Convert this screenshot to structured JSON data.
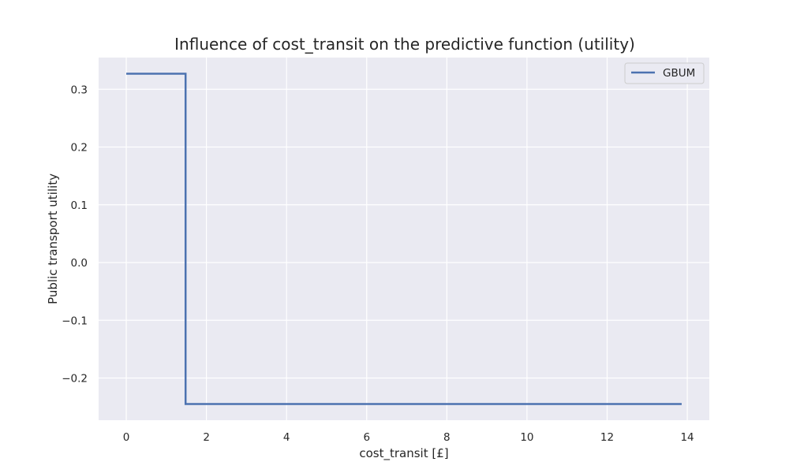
{
  "chart_data": {
    "type": "line",
    "title": "Influence of cost_transit on the predictive function (utility)",
    "xlabel": "cost_transit [£]",
    "ylabel": "Public transport utility",
    "xlim": [
      -0.69,
      14.55
    ],
    "ylim": [
      -0.273,
      0.355
    ],
    "xticks": [
      0,
      2,
      4,
      6,
      8,
      10,
      12,
      14
    ],
    "xtick_labels": [
      "0",
      "2",
      "4",
      "6",
      "8",
      "10",
      "12",
      "14"
    ],
    "yticks": [
      -0.2,
      -0.1,
      0.0,
      0.1,
      0.2,
      0.3
    ],
    "ytick_labels": [
      "−0.2",
      "−0.1",
      "0.0",
      "0.1",
      "0.2",
      "0.3"
    ],
    "grid": true,
    "legend_position": "top-right",
    "series": [
      {
        "name": "GBUM",
        "color": "#4c72b0",
        "step": true,
        "x": [
          0,
          1.48,
          1.48,
          13.86
        ],
        "y": [
          0.327,
          0.327,
          -0.245,
          -0.245
        ]
      }
    ]
  },
  "colors": {
    "plot_background": "#eaeaf2",
    "grid": "#ffffff",
    "text": "#262626"
  }
}
